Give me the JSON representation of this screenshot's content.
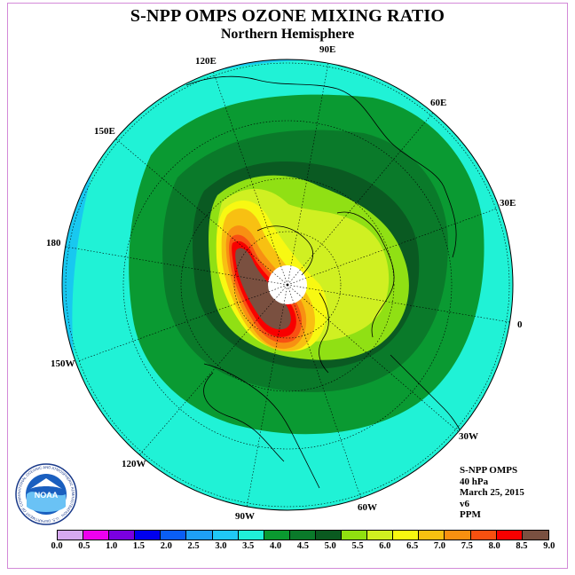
{
  "title": "S-NPP OMPS OZONE MIXING RATIO",
  "subtitle": "Northern Hemisphere",
  "longitude_labels": [
    "90E",
    "60E",
    "30E",
    "0",
    "30W",
    "60W",
    "90W",
    "120W",
    "150W",
    "180",
    "150E",
    "120E"
  ],
  "info": {
    "instrument": "S-NPP OMPS",
    "level": "40 hPa",
    "date": "March 25, 2015",
    "version": "v6",
    "units": "PPM"
  },
  "logo": {
    "text": "NOAA",
    "ring_text": "NATIONAL OCEANIC AND ATMOSPHERIC ADMINISTRATION · U.S. DEPARTMENT OF COMMERCE"
  },
  "colorbar": {
    "ticks": [
      "0.0",
      "0.5",
      "1.0",
      "1.5",
      "2.0",
      "2.5",
      "3.0",
      "3.5",
      "4.0",
      "4.5",
      "5.0",
      "5.5",
      "6.0",
      "6.5",
      "7.0",
      "7.5",
      "8.0",
      "8.5",
      "9.0"
    ],
    "colors": [
      "#b77fef",
      "#d6a9f0",
      "#ee00ee",
      "#7a00e0",
      "#0000ee",
      "#0a5ef5",
      "#1ea0f5",
      "#20c8f5",
      "#20f0d8",
      "#0a9a30",
      "#0a7a2a",
      "#0a5a20",
      "#90e010",
      "#d0f020",
      "#f8f810",
      "#f8c010",
      "#f89010",
      "#f85010",
      "#f80000",
      "#7a5040"
    ]
  }
}
